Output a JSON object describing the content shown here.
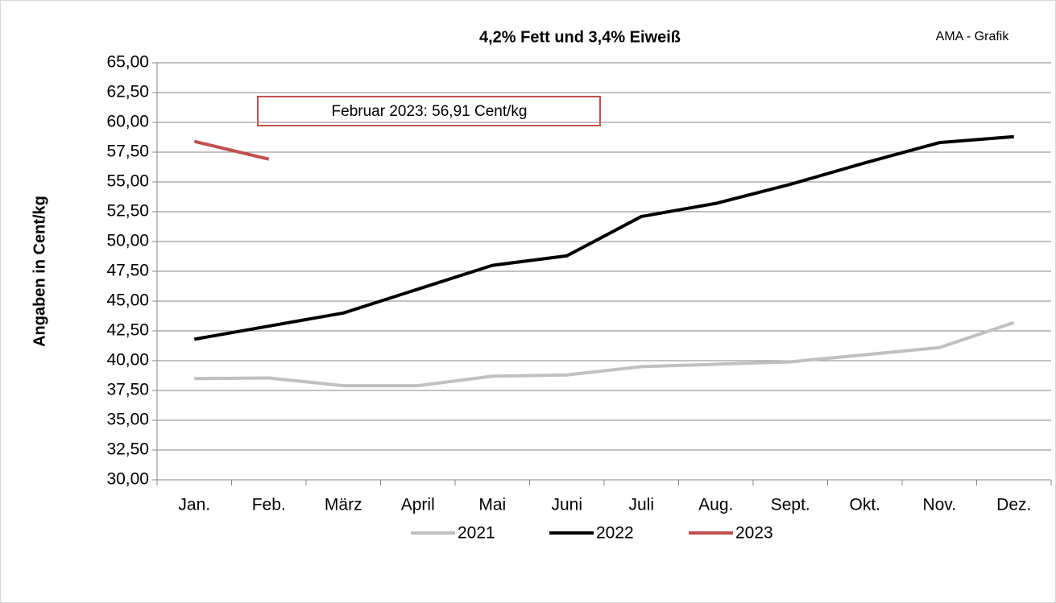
{
  "chart_data": {
    "type": "line",
    "title": "4,2% Fett und 3,4% Eiweiß",
    "credit": "AMA - Grafik",
    "annotation": "Februar 2023: 56,91 Cent/kg",
    "y_label": "Angaben in Cent/kg",
    "categories": [
      "Jan.",
      "Feb.",
      "März",
      "April",
      "Mai",
      "Juni",
      "Juli",
      "Aug.",
      "Sept.",
      "Okt.",
      "Nov.",
      "Dez."
    ],
    "series": [
      {
        "name": "2021",
        "color": "#c0c0c0",
        "values": [
          38.5,
          38.55,
          37.9,
          37.9,
          38.7,
          38.8,
          39.5,
          39.7,
          39.9,
          40.5,
          41.1,
          43.2
        ]
      },
      {
        "name": "2022",
        "color": "#000000",
        "values": [
          41.8,
          42.9,
          44.0,
          46.0,
          48.0,
          48.8,
          52.1,
          53.2,
          54.8,
          56.6,
          58.3,
          58.8
        ]
      },
      {
        "name": "2023",
        "color": "#c0504d",
        "values": [
          58.4,
          56.91,
          null,
          null,
          null,
          null,
          null,
          null,
          null,
          null,
          null,
          null
        ]
      }
    ],
    "ylim": [
      30,
      65
    ],
    "yticks": [
      {
        "value": 30,
        "label": "30,00"
      },
      {
        "value": 32.5,
        "label": "32,50"
      },
      {
        "value": 35,
        "label": "35,00"
      },
      {
        "value": 37.5,
        "label": "37,50"
      },
      {
        "value": 40,
        "label": "40,00"
      },
      {
        "value": 42.5,
        "label": "42,50"
      },
      {
        "value": 45,
        "label": "45,00"
      },
      {
        "value": 47.5,
        "label": "47,50"
      },
      {
        "value": 50,
        "label": "50,00"
      },
      {
        "value": 52.5,
        "label": "52,50"
      },
      {
        "value": 55,
        "label": "55,00"
      },
      {
        "value": 57.5,
        "label": "57,50"
      },
      {
        "value": 60,
        "label": "60,00"
      },
      {
        "value": 62.5,
        "label": "62,50"
      },
      {
        "value": 65,
        "label": "65,00"
      }
    ],
    "grid": true
  }
}
